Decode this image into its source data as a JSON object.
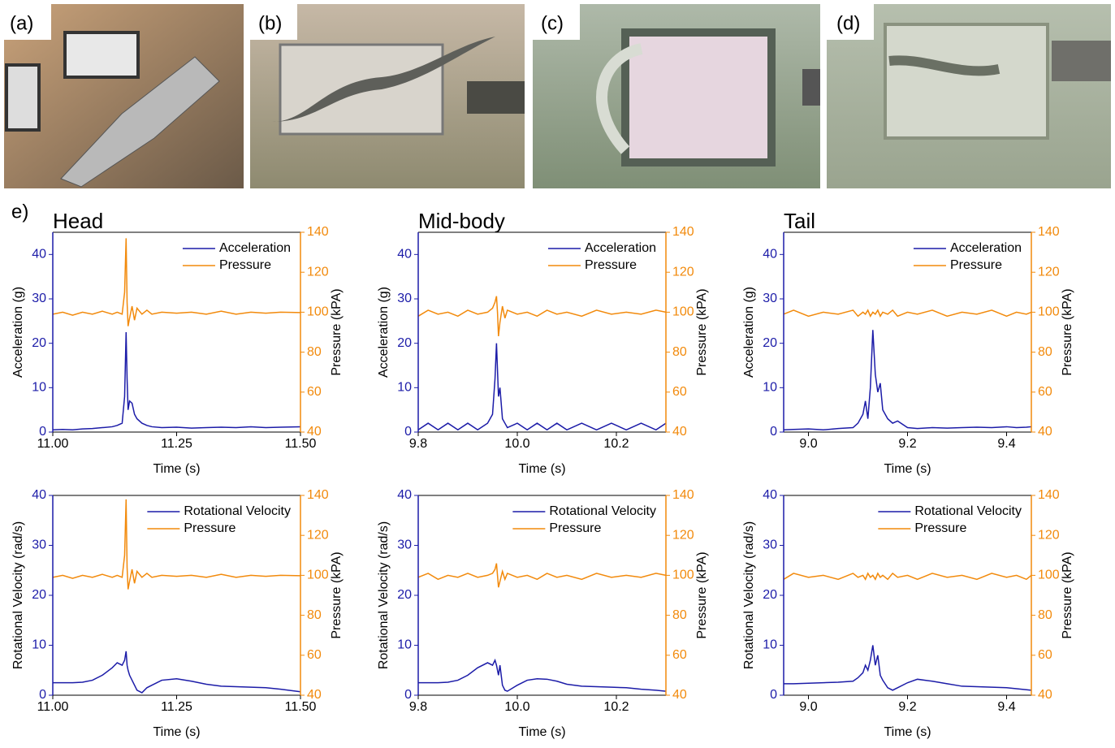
{
  "photo_labels": [
    "(a)",
    "(b)",
    "(c)",
    "(d)"
  ],
  "figure_label": "e)",
  "chart_data": [
    {
      "type": "line",
      "title": "Head",
      "x_label": "Time (s)",
      "y_label": "Acceleration (g)",
      "y2_label": "Pressure (kPA)",
      "legend": "upper-right",
      "x": [
        11.0,
        11.02,
        11.04,
        11.06,
        11.08,
        11.1,
        11.12,
        11.13,
        11.14,
        11.145,
        11.148,
        11.15,
        11.152,
        11.155,
        11.16,
        11.165,
        11.17,
        11.18,
        11.19,
        11.2,
        11.22,
        11.25,
        11.28,
        11.31,
        11.34,
        11.37,
        11.4,
        11.43,
        11.46,
        11.5
      ],
      "series": [
        {
          "name": "Acceleration",
          "color": "#1c1ca8",
          "values": [
            0.5,
            0.6,
            0.5,
            0.7,
            0.8,
            1,
            1.2,
            1.5,
            2,
            8,
            22.5,
            12,
            5,
            7,
            6.5,
            4,
            3,
            2,
            1.5,
            1.2,
            1,
            1.1,
            0.9,
            1,
            1.1,
            1,
            1.2,
            1,
            1.1,
            1.2
          ]
        },
        {
          "name": "Pressure",
          "color": "#f28a0c",
          "axis": "y2",
          "values": [
            99,
            100,
            98.5,
            100,
            99,
            100.5,
            99,
            100,
            99,
            110,
            137,
            105,
            93,
            97,
            103,
            96,
            102,
            99,
            101,
            99,
            100,
            99.5,
            100,
            99,
            100.5,
            99,
            100,
            99.5,
            100,
            99.8
          ]
        }
      ],
      "xlim": [
        11.0,
        11.5
      ],
      "xticks": [
        {
          "value": 11,
          "label": "11.00"
        },
        11.25,
        {
          "value": 11.5,
          "label": "11.50"
        }
      ],
      "ylim": [
        0,
        45
      ],
      "yticks": [
        0,
        10,
        20,
        30,
        40
      ],
      "y2lim": [
        40,
        140
      ],
      "y2ticks": [
        40,
        60,
        80,
        100,
        120,
        140
      ]
    },
    {
      "type": "line",
      "title": "Mid-body",
      "x_label": "Time (s)",
      "y_label": "Acceleration (g)",
      "y2_label": "Pressure (kPA)",
      "legend": "upper-right",
      "x": [
        9.8,
        9.82,
        9.84,
        9.86,
        9.88,
        9.9,
        9.92,
        9.94,
        9.95,
        9.955,
        9.958,
        9.96,
        9.962,
        9.965,
        9.97,
        9.975,
        9.98,
        10.0,
        10.02,
        10.04,
        10.06,
        10.08,
        10.1,
        10.13,
        10.16,
        10.19,
        10.22,
        10.25,
        10.28,
        10.3
      ],
      "series": [
        {
          "name": "Acceleration",
          "color": "#1c1ca8",
          "values": [
            0.5,
            2,
            0.5,
            2,
            0.5,
            2,
            0.5,
            2,
            4,
            12,
            20,
            14,
            8,
            10,
            3,
            2,
            1,
            2,
            0.5,
            2,
            0.5,
            2,
            0.5,
            2,
            0.5,
            2,
            0.5,
            2,
            0.5,
            2
          ]
        },
        {
          "name": "Pressure",
          "color": "#f28a0c",
          "axis": "y2",
          "values": [
            98,
            101,
            99,
            100,
            98,
            101,
            99,
            100,
            102,
            105,
            108,
            100,
            88,
            95,
            103,
            97,
            101,
            99,
            100,
            98,
            101,
            99,
            100,
            98,
            101,
            99,
            100,
            99,
            101,
            100
          ]
        }
      ],
      "xlim": [
        9.8,
        10.3
      ],
      "xticks": [
        9.8,
        {
          "value": 10,
          "label": "10.0"
        },
        10.2
      ],
      "ylim": [
        0,
        45
      ],
      "yticks": [
        0,
        10,
        20,
        30,
        40
      ],
      "y2lim": [
        40,
        140
      ],
      "y2ticks": [
        40,
        60,
        80,
        100,
        120,
        140
      ]
    },
    {
      "type": "line",
      "title": "Tail",
      "x_label": "Time (s)",
      "y_label": "Acceleration (g)",
      "y2_label": "Pressure (kPA)",
      "legend": "upper-right",
      "x": [
        8.95,
        8.97,
        9.0,
        9.03,
        9.06,
        9.09,
        9.1,
        9.11,
        9.115,
        9.12,
        9.125,
        9.13,
        9.135,
        9.14,
        9.145,
        9.15,
        9.16,
        9.17,
        9.18,
        9.2,
        9.22,
        9.25,
        9.28,
        9.31,
        9.34,
        9.37,
        9.4,
        9.42,
        9.44,
        9.45
      ],
      "series": [
        {
          "name": "Acceleration",
          "color": "#1c1ca8",
          "values": [
            0.5,
            0.6,
            0.7,
            0.5,
            0.8,
            1,
            2,
            4,
            7,
            3,
            10,
            23,
            13,
            9,
            11,
            5,
            3,
            2,
            2.5,
            1,
            0.8,
            1,
            0.9,
            1,
            1.1,
            1,
            1.2,
            1,
            1.1,
            1.2
          ]
        },
        {
          "name": "Pressure",
          "color": "#f28a0c",
          "axis": "y2",
          "values": [
            99,
            101,
            98,
            100,
            99,
            101,
            98,
            100,
            99,
            101,
            98,
            100,
            99,
            101,
            98,
            100,
            99,
            101,
            98,
            100,
            99,
            101,
            98,
            100,
            99,
            101,
            98,
            100,
            99,
            100
          ]
        }
      ],
      "xlim": [
        8.95,
        9.45
      ],
      "xticks": [
        {
          "value": 9,
          "label": "9.0"
        },
        9.2,
        9.4
      ],
      "ylim": [
        0,
        45
      ],
      "yticks": [
        0,
        10,
        20,
        30,
        40
      ],
      "y2lim": [
        40,
        140
      ],
      "y2ticks": [
        40,
        60,
        80,
        100,
        120,
        140
      ]
    },
    {
      "type": "line",
      "x_label": "Time (s)",
      "y_label": "Rotational Velocity (rad/s)",
      "y2_label": "Pressure (kPA)",
      "legend": "upper-right",
      "x": [
        11.0,
        11.02,
        11.04,
        11.06,
        11.08,
        11.1,
        11.12,
        11.13,
        11.14,
        11.145,
        11.148,
        11.15,
        11.152,
        11.155,
        11.16,
        11.165,
        11.17,
        11.18,
        11.19,
        11.2,
        11.22,
        11.25,
        11.28,
        11.31,
        11.34,
        11.37,
        11.4,
        11.43,
        11.46,
        11.5
      ],
      "series": [
        {
          "name": "Rotational Velocity",
          "color": "#1c1ca8",
          "values": [
            2.5,
            2.5,
            2.5,
            2.6,
            3,
            4,
            5.5,
            6.5,
            6,
            7,
            8.8,
            6,
            5,
            4,
            3,
            2,
            1,
            0.5,
            1.5,
            2,
            3,
            3.3,
            2.8,
            2.2,
            1.8,
            1.7,
            1.6,
            1.5,
            1.2,
            0.7
          ]
        },
        {
          "name": "Pressure",
          "color": "#f28a0c",
          "axis": "y2",
          "values": [
            99,
            100,
            98.5,
            100,
            99,
            100.5,
            99,
            100,
            99,
            110,
            138,
            104,
            93,
            97,
            103,
            96,
            102,
            99,
            101,
            99,
            100,
            99.5,
            100,
            99,
            100.5,
            99,
            100,
            99.5,
            100,
            99.8
          ]
        }
      ],
      "xlim": [
        11.0,
        11.5
      ],
      "xticks": [
        {
          "value": 11,
          "label": "11.00"
        },
        11.25,
        {
          "value": 11.5,
          "label": "11.50"
        }
      ],
      "ylim": [
        0,
        40
      ],
      "yticks": [
        0,
        10,
        20,
        30,
        40
      ],
      "y2lim": [
        40,
        140
      ],
      "y2ticks": [
        40,
        60,
        80,
        100,
        120,
        140
      ]
    },
    {
      "type": "line",
      "x_label": "Time (s)",
      "y_label": "Rotational Velocity (rad/s)",
      "y2_label": "Pressure (kPA)",
      "legend": "upper-right",
      "x": [
        9.8,
        9.82,
        9.84,
        9.86,
        9.88,
        9.9,
        9.92,
        9.94,
        9.95,
        9.955,
        9.958,
        9.96,
        9.962,
        9.965,
        9.97,
        9.975,
        9.98,
        10.0,
        10.02,
        10.04,
        10.06,
        10.08,
        10.1,
        10.13,
        10.16,
        10.19,
        10.22,
        10.25,
        10.28,
        10.3
      ],
      "series": [
        {
          "name": "Rotational Velocity",
          "color": "#1c1ca8",
          "values": [
            2.5,
            2.5,
            2.5,
            2.6,
            3,
            4,
            5.5,
            6.5,
            6,
            7,
            6,
            5,
            4,
            6,
            2,
            1,
            0.8,
            2,
            3,
            3.3,
            3.2,
            2.8,
            2.2,
            1.8,
            1.7,
            1.6,
            1.5,
            1.2,
            1,
            0.8
          ]
        },
        {
          "name": "Pressure",
          "color": "#f28a0c",
          "axis": "y2",
          "values": [
            99,
            101,
            98,
            100,
            99,
            101,
            99,
            100,
            101,
            103,
            106,
            100,
            94,
            97,
            102,
            98,
            101,
            99,
            100,
            98,
            101,
            99,
            100,
            98,
            101,
            99,
            100,
            99,
            101,
            100
          ]
        }
      ],
      "xlim": [
        9.8,
        10.3
      ],
      "xticks": [
        9.8,
        {
          "value": 10,
          "label": "10.0"
        },
        10.2
      ],
      "ylim": [
        0,
        40
      ],
      "yticks": [
        0,
        10,
        20,
        30,
        40
      ],
      "y2lim": [
        40,
        140
      ],
      "y2ticks": [
        40,
        60,
        80,
        100,
        120,
        140
      ]
    },
    {
      "type": "line",
      "x_label": "Time (s)",
      "y_label": "Rotational Velocity (rad/s)",
      "y2_label": "Pressure (kPA)",
      "legend": "upper-right",
      "x": [
        8.95,
        8.97,
        9.0,
        9.03,
        9.06,
        9.09,
        9.1,
        9.11,
        9.115,
        9.12,
        9.125,
        9.13,
        9.135,
        9.14,
        9.145,
        9.15,
        9.16,
        9.17,
        9.18,
        9.2,
        9.22,
        9.25,
        9.28,
        9.31,
        9.34,
        9.37,
        9.4,
        9.42,
        9.44,
        9.45
      ],
      "series": [
        {
          "name": "Rotational Velocity",
          "color": "#1c1ca8",
          "values": [
            2.3,
            2.3,
            2.4,
            2.5,
            2.6,
            2.8,
            3.5,
            4.5,
            6,
            5,
            7,
            10,
            6,
            8,
            4,
            3,
            1.5,
            1,
            1.5,
            2.5,
            3.2,
            2.8,
            2.3,
            1.8,
            1.7,
            1.6,
            1.5,
            1.3,
            1.1,
            1
          ]
        },
        {
          "name": "Pressure",
          "color": "#f28a0c",
          "axis": "y2",
          "values": [
            98,
            101,
            99,
            100,
            98,
            101,
            99,
            100,
            98,
            101,
            99,
            100,
            98,
            101,
            99,
            100,
            98,
            101,
            99,
            100,
            98,
            101,
            99,
            100,
            98,
            101,
            99,
            100,
            98,
            100
          ]
        }
      ],
      "xlim": [
        8.95,
        9.45
      ],
      "xticks": [
        {
          "value": 9,
          "label": "9.0"
        },
        9.2,
        9.4
      ],
      "ylim": [
        0,
        40
      ],
      "yticks": [
        0,
        10,
        20,
        30,
        40
      ],
      "y2lim": [
        40,
        140
      ],
      "y2ticks": [
        40,
        60,
        80,
        100,
        120,
        140
      ]
    }
  ]
}
